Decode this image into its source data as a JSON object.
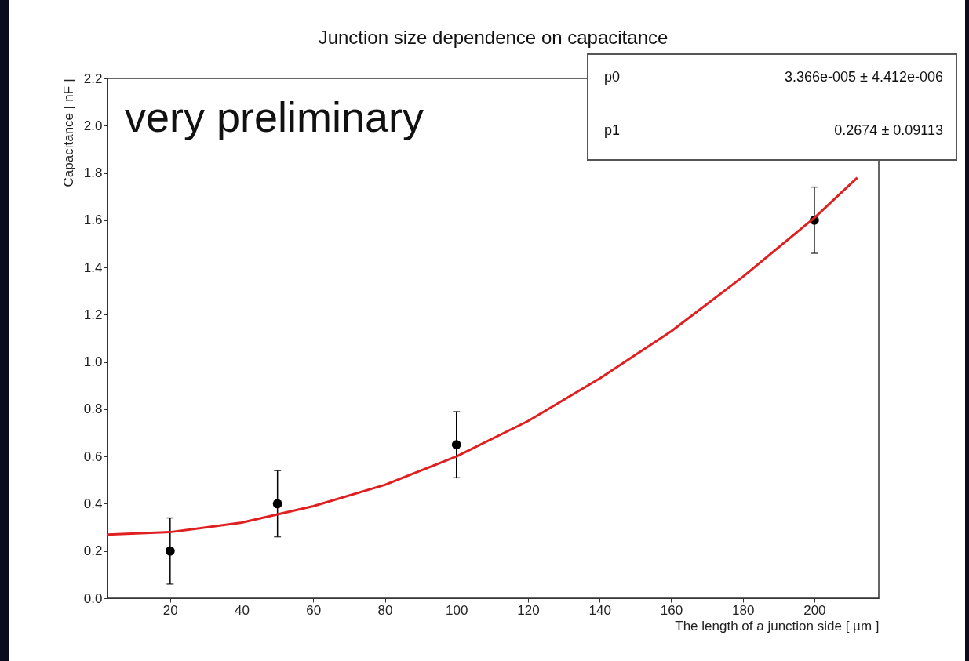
{
  "chart_data": {
    "type": "scatter",
    "title": "Junction size dependence on capacitance",
    "xlabel": "The length of a junction side [ µm ]",
    "ylabel": "Capacitance [ nF ]",
    "x": [
      20,
      50,
      100,
      200
    ],
    "series": [
      {
        "color": "#000000",
        "marker": "circle",
        "values": [
          0.2,
          0.4,
          0.65,
          1.6
        ],
        "errors": [
          0.14,
          0.14,
          0.14,
          0.14
        ]
      },
      {
        "type": "line",
        "color": "#e02020",
        "marker": "none",
        "x": [
          2.5,
          20,
          40,
          60,
          80,
          100,
          120,
          140,
          160,
          180,
          200,
          212
        ],
        "values": [
          0.27,
          0.28,
          0.32,
          0.39,
          0.48,
          0.6,
          0.75,
          0.93,
          1.13,
          1.36,
          1.61,
          1.78
        ]
      }
    ],
    "xlim": [
      2.5,
      218
    ],
    "xticks": [
      20,
      40,
      60,
      80,
      100,
      120,
      140,
      160,
      180,
      200
    ],
    "ylim": [
      0,
      2.2
    ],
    "yticks": [
      {
        "value": 0,
        "label": "0.0"
      },
      0.2,
      0.4,
      0.6,
      0.8,
      {
        "value": 1,
        "label": "1.0"
      },
      1.2,
      1.4,
      1.6,
      1.8,
      {
        "value": 2,
        "label": "2.0"
      },
      2.2
    ],
    "grid": false,
    "line_style": "solid",
    "annotations": [
      "very preliminary",
      "p0",
      "3.366e-005 ± 4.412e-006",
      "p1",
      "0.2674 ± 0.09113"
    ]
  }
}
